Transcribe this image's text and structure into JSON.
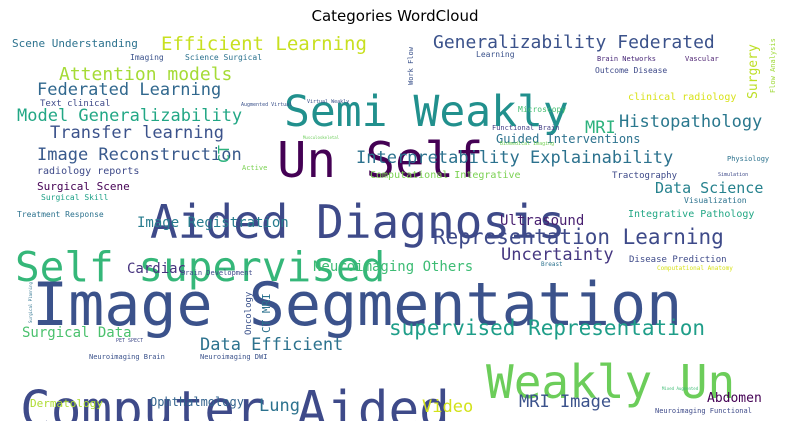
{
  "chart_data": {
    "type": "wordcloud",
    "title": "Categories WordCloud",
    "colormap": "viridis",
    "words": [
      {
        "text": "Image Segmentation",
        "color": "#3b528b"
      },
      {
        "text": "Aided Diagnosis",
        "color": "#3e4a89"
      },
      {
        "text": "Computer Aided",
        "color": "#3e4a89"
      },
      {
        "text": "Semi Weakly",
        "color": "#21908d"
      },
      {
        "text": "Un Self",
        "color": "#440154"
      },
      {
        "text": "Self supervised",
        "color": "#35b779"
      },
      {
        "text": "Weakly Un",
        "color": "#6ccd5a"
      },
      {
        "text": "Representation Learning",
        "color": "#3e4a89"
      },
      {
        "text": "supervised Representation",
        "color": "#1f9e89"
      },
      {
        "text": "Generalizability Federated",
        "color": "#3b528b"
      },
      {
        "text": "Efficient Learning",
        "color": "#c8e020"
      },
      {
        "text": "Attention models",
        "color": "#a5db36"
      },
      {
        "text": "Federated Learning",
        "color": "#31688e"
      },
      {
        "text": "Model Generalizability",
        "color": "#22a785"
      },
      {
        "text": "Transfer learning",
        "color": "#3b528b"
      },
      {
        "text": "Image Reconstruction",
        "color": "#38598c"
      },
      {
        "text": "Interpretability Explainability",
        "color": "#2c728e"
      },
      {
        "text": "Histopathology",
        "color": "#2a788e"
      },
      {
        "text": "Uncertainty",
        "color": "#453781"
      },
      {
        "text": "Data Efficient",
        "color": "#2c728e"
      },
      {
        "text": "MRI Image",
        "color": "#3b528b"
      },
      {
        "text": "Guided Interventions",
        "color": "#2c728e"
      },
      {
        "text": "Data Science",
        "color": "#26828e"
      },
      {
        "text": "Image Registration",
        "color": "#287c8e"
      },
      {
        "text": "Neuroimaging Others",
        "color": "#3dbc74"
      },
      {
        "text": "Surgical Data",
        "color": "#4ac16d"
      },
      {
        "text": "Cardiac",
        "color": "#46337e"
      },
      {
        "text": "Ultrasound",
        "color": "#481f70"
      },
      {
        "text": "MRI",
        "color": "#2db27d"
      },
      {
        "text": "Video",
        "color": "#d2e21b"
      },
      {
        "text": "Lung",
        "color": "#2c728e"
      },
      {
        "text": "CT",
        "color": "#2db27d"
      },
      {
        "text": "Surgery",
        "color": "#bddf26"
      },
      {
        "text": "Abdomen",
        "color": "#440154"
      },
      {
        "text": "Ophthalmology",
        "color": "#33638d"
      },
      {
        "text": "Dermatology",
        "color": "#addc30"
      },
      {
        "text": "Scene Understanding",
        "color": "#2c728e"
      },
      {
        "text": "Imaging",
        "color": "#3b528b"
      },
      {
        "text": "Science Surgical",
        "color": "#2c728e"
      },
      {
        "text": "Learning",
        "color": "#3b528b"
      },
      {
        "text": "Brain Networks",
        "color": "#482878"
      },
      {
        "text": "Vascular",
        "color": "#481c6e"
      },
      {
        "text": "Outcome Disease",
        "color": "#3e4a89"
      },
      {
        "text": "Flow Analysis",
        "color": "#a0da39"
      },
      {
        "text": "Work Flow",
        "color": "#3b528b"
      },
      {
        "text": "clinical radiology",
        "color": "#d8e219"
      },
      {
        "text": "Text clinical",
        "color": "#3e4a89"
      },
      {
        "text": "Augmented Virtual",
        "color": "#3b528b"
      },
      {
        "text": "Virtual Weakly",
        "color": "#3b528b"
      },
      {
        "text": "Microscopy",
        "color": "#44bf70"
      },
      {
        "text": "Functional Brain",
        "color": "#433e85"
      },
      {
        "text": "Biomedical Imaging",
        "color": "#73d056"
      },
      {
        "text": "Physiology",
        "color": "#2c728e"
      },
      {
        "text": "Musculoskeletal",
        "color": "#6ccd5a"
      },
      {
        "text": "Active",
        "color": "#7ad151"
      },
      {
        "text": "Computational Integrative",
        "color": "#7ad151"
      },
      {
        "text": "Tractography",
        "color": "#3e4a89"
      },
      {
        "text": "Simulation",
        "color": "#3e4a89"
      },
      {
        "text": "radiology reports",
        "color": "#3e4a89"
      },
      {
        "text": "Surgical Scene",
        "color": "#440154"
      },
      {
        "text": "Surgical Skill",
        "color": "#1fa187"
      },
      {
        "text": "Visualization",
        "color": "#2c728e"
      },
      {
        "text": "Treatment Response",
        "color": "#2c728e"
      },
      {
        "text": "Integrative Pathology",
        "color": "#22a785"
      },
      {
        "text": "Breast",
        "color": "#2c728e"
      },
      {
        "text": "Brain Development",
        "color": "#3e4a89"
      },
      {
        "text": "Disease Prediction",
        "color": "#3e4a89"
      },
      {
        "text": "Computational Anatomy",
        "color": "#d8e219"
      },
      {
        "text": "Oncology",
        "color": "#3b528b"
      },
      {
        "text": "CT MRI",
        "color": "#2c728e"
      },
      {
        "text": "PET SPECT",
        "color": "#3e4a89"
      },
      {
        "text": "Neuroimaging Brain",
        "color": "#3b528b"
      },
      {
        "text": "Neuroimaging DWI",
        "color": "#3b528b"
      },
      {
        "text": "Neuroimaging Functional",
        "color": "#3e4a89"
      },
      {
        "text": "Mixed Augmented",
        "color": "#3dbc74"
      },
      {
        "text": "Surgical Planning",
        "color": "#2c728e"
      }
    ]
  }
}
